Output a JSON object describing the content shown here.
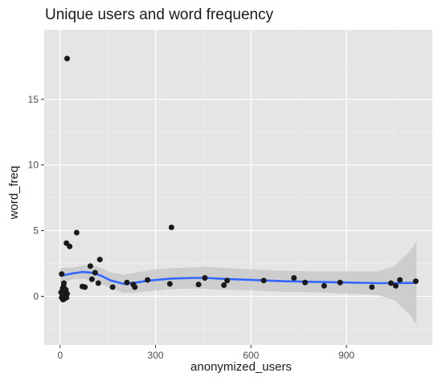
{
  "chart_data": {
    "type": "scatter",
    "title": "Unique users and word frequency",
    "xlabel": "anonymized_users",
    "ylabel": "word_freq",
    "xlim": [
      -50,
      1170
    ],
    "ylim": [
      -3.7,
      20.3
    ],
    "x_ticks": [
      0,
      300,
      600,
      900
    ],
    "y_ticks": [
      0,
      5,
      10,
      15
    ],
    "x_tick_labels": [
      "0",
      "300",
      "600",
      "900"
    ],
    "y_tick_labels": [
      "0",
      "5",
      "10",
      "15"
    ],
    "grid": true,
    "legend": "none",
    "colors": {
      "panel_background": "#e5e5e5",
      "grid_major": "#ffffff",
      "grid_minor": "#f2f2f2",
      "points": "#1a1a1a",
      "smooth_line": "#3366ff",
      "confidence_band": "#c4c4c4",
      "tick_mark": "#333333"
    },
    "points": [
      {
        "x": 22,
        "y": 18.1
      },
      {
        "x": 52,
        "y": 4.85
      },
      {
        "x": 20,
        "y": 4.05
      },
      {
        "x": 30,
        "y": 3.8
      },
      {
        "x": 350,
        "y": 5.25
      },
      {
        "x": 125,
        "y": 2.8
      },
      {
        "x": 95,
        "y": 2.3
      },
      {
        "x": 5,
        "y": 1.7
      },
      {
        "x": 110,
        "y": 1.8
      },
      {
        "x": 100,
        "y": 1.3
      },
      {
        "x": 120,
        "y": 1.0
      },
      {
        "x": 70,
        "y": 0.75
      },
      {
        "x": 78,
        "y": 0.7
      },
      {
        "x": 165,
        "y": 0.7
      },
      {
        "x": 210,
        "y": 1.05
      },
      {
        "x": 230,
        "y": 0.9
      },
      {
        "x": 235,
        "y": 0.7
      },
      {
        "x": 275,
        "y": 1.25
      },
      {
        "x": 345,
        "y": 0.95
      },
      {
        "x": 435,
        "y": 0.9
      },
      {
        "x": 455,
        "y": 1.4
      },
      {
        "x": 515,
        "y": 0.85
      },
      {
        "x": 525,
        "y": 1.2
      },
      {
        "x": 640,
        "y": 1.2
      },
      {
        "x": 735,
        "y": 1.4
      },
      {
        "x": 770,
        "y": 1.05
      },
      {
        "x": 830,
        "y": 0.8
      },
      {
        "x": 880,
        "y": 1.05
      },
      {
        "x": 980,
        "y": 0.7
      },
      {
        "x": 1040,
        "y": 1.0
      },
      {
        "x": 1055,
        "y": 0.8
      },
      {
        "x": 1068,
        "y": 1.25
      },
      {
        "x": 1118,
        "y": 1.15
      },
      {
        "x": 3,
        "y": 0.3
      },
      {
        "x": 5,
        "y": -0.1
      },
      {
        "x": 7,
        "y": 0.0
      },
      {
        "x": 8,
        "y": 0.6
      },
      {
        "x": 9,
        "y": -0.25
      },
      {
        "x": 10,
        "y": 0.2
      },
      {
        "x": 11,
        "y": 0.8
      },
      {
        "x": 12,
        "y": 1.0
      },
      {
        "x": 13,
        "y": -0.2
      },
      {
        "x": 15,
        "y": 0.4
      },
      {
        "x": 16,
        "y": 0.1
      },
      {
        "x": 18,
        "y": 0.5
      },
      {
        "x": 20,
        "y": -0.1
      },
      {
        "x": 22,
        "y": 0.2
      }
    ],
    "smooth": {
      "x": [
        0,
        40,
        70,
        100,
        130,
        160,
        200,
        240,
        280,
        350,
        420,
        460,
        520,
        600,
        700,
        800,
        900,
        1000,
        1050,
        1100,
        1120
      ],
      "y": [
        1.55,
        1.75,
        1.85,
        1.8,
        1.55,
        1.2,
        0.95,
        1.05,
        1.2,
        1.35,
        1.4,
        1.4,
        1.32,
        1.25,
        1.15,
        1.1,
        1.05,
        1.0,
        1.0,
        1.02,
        1.02
      ],
      "lower": [
        0.95,
        1.3,
        1.35,
        1.2,
        0.95,
        0.6,
        0.25,
        0.3,
        0.4,
        0.55,
        0.6,
        0.55,
        0.5,
        0.45,
        0.35,
        0.3,
        0.2,
        0.1,
        -0.3,
        -1.4,
        -2.15
      ],
      "upper": [
        2.15,
        2.2,
        2.35,
        2.4,
        2.15,
        1.8,
        1.65,
        1.8,
        2.0,
        2.15,
        2.2,
        2.25,
        2.15,
        2.05,
        1.95,
        1.9,
        1.9,
        1.9,
        2.3,
        3.45,
        4.2
      ]
    }
  }
}
